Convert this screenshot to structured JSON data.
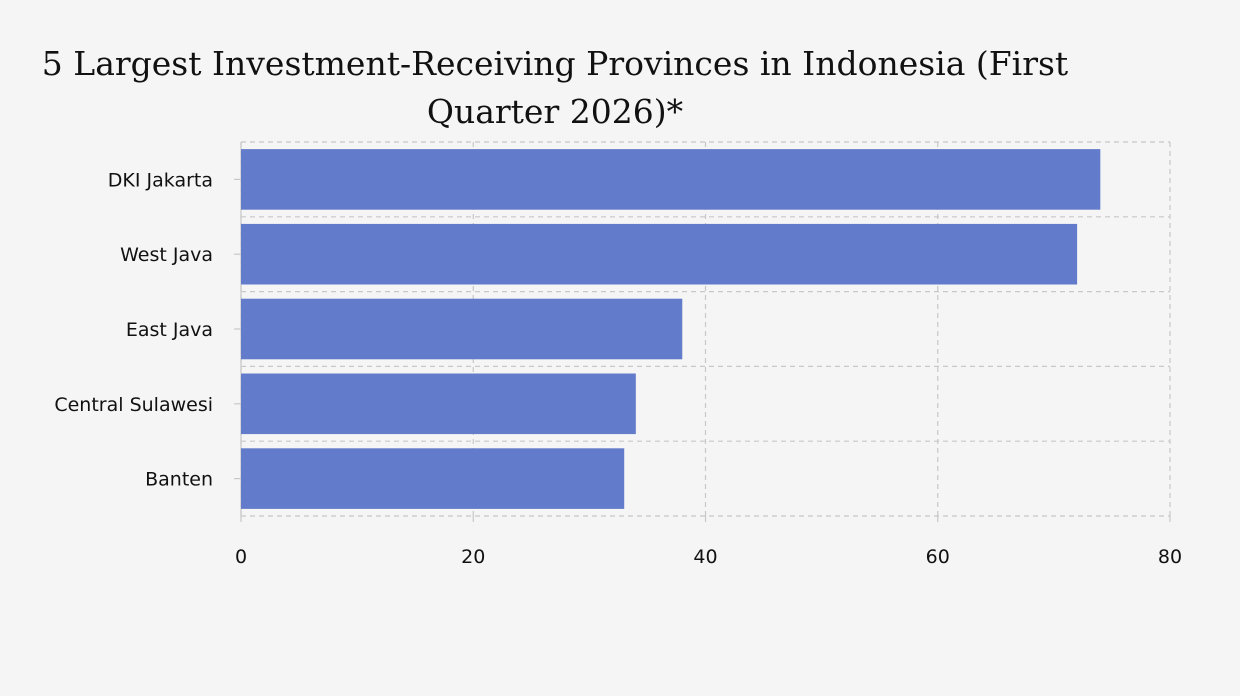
{
  "chart_data": {
    "type": "bar",
    "orientation": "horizontal",
    "title": "5 Largest Investment-Receiving Provinces in Indonesia (First Quarter 2026)*",
    "categories": [
      "DKI Jakarta",
      "West Java",
      "East Java",
      "Central Sulawesi",
      "Banten"
    ],
    "values": [
      74,
      72,
      38,
      34,
      33
    ],
    "xlabel": "",
    "ylabel": "",
    "xlim": [
      0,
      80
    ],
    "xticks": [
      0,
      20,
      40,
      60,
      80
    ],
    "grid": true,
    "bar_color": "#627bca",
    "grid_color": "#c8c8c8",
    "background": "#f5f5f5"
  }
}
